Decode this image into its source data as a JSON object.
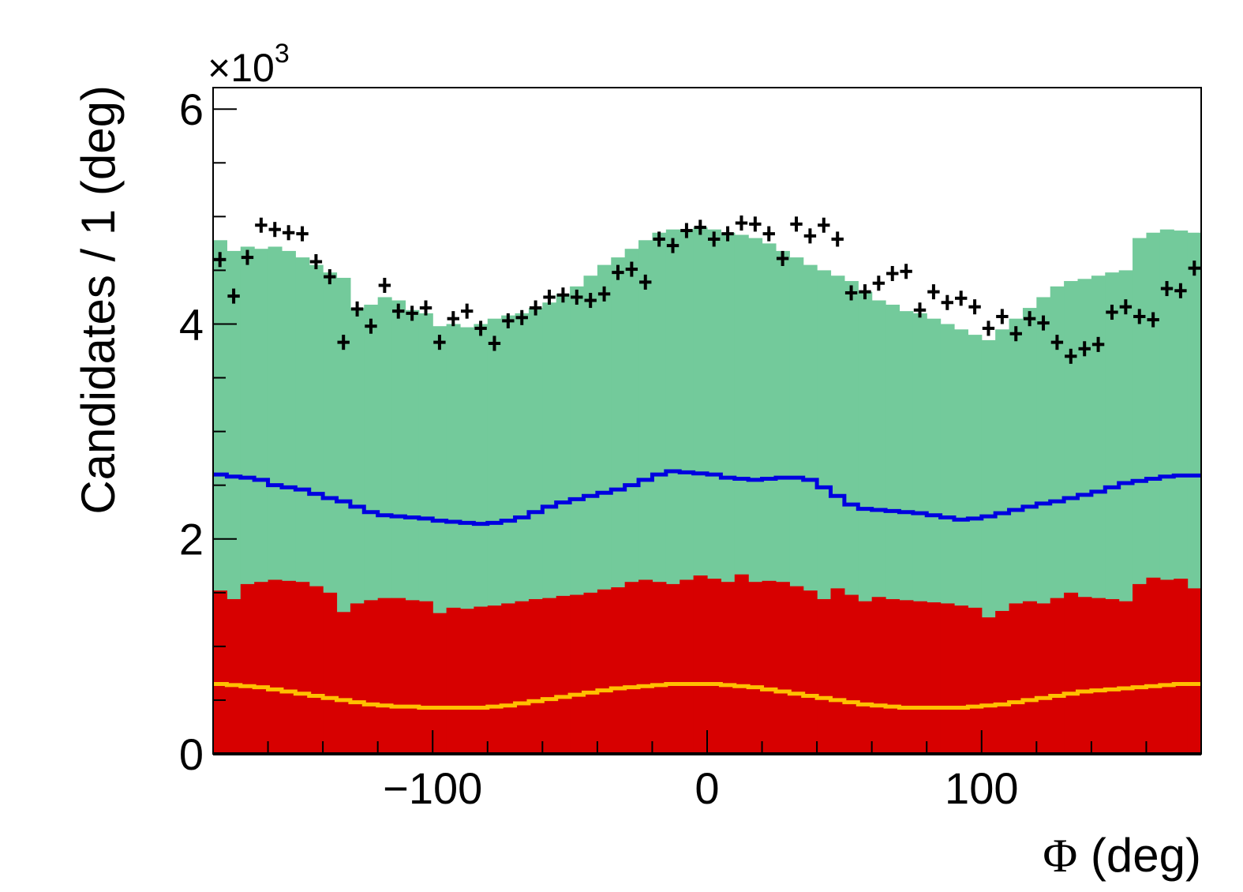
{
  "chart_data": {
    "type": "histogram",
    "title": "",
    "xlabel": "Φ (deg)",
    "ylabel": "Candidates / 1 (deg)",
    "y_multiplier": "×10",
    "y_multiplier_exp": "3",
    "xlim": [
      -180,
      180
    ],
    "ylim": [
      0,
      6.2
    ],
    "x_ticks": [
      -100,
      0,
      100
    ],
    "x_tick_labels": [
      "−100",
      "0",
      "100"
    ],
    "y_ticks": [
      0,
      2,
      4,
      6
    ],
    "y_tick_labels": [
      "0",
      "2",
      "4",
      "6"
    ],
    "grid": false,
    "legend": "none",
    "bin_width": 5,
    "bin_centers": [
      -177.5,
      -172.5,
      -167.5,
      -162.5,
      -157.5,
      -152.5,
      -147.5,
      -142.5,
      -137.5,
      -132.5,
      -127.5,
      -122.5,
      -117.5,
      -112.5,
      -107.5,
      -102.5,
      -97.5,
      -92.5,
      -87.5,
      -82.5,
      -77.5,
      -72.5,
      -67.5,
      -62.5,
      -57.5,
      -52.5,
      -47.5,
      -42.5,
      -37.5,
      -32.5,
      -27.5,
      -22.5,
      -17.5,
      -12.5,
      -7.5,
      -2.5,
      2.5,
      7.5,
      12.5,
      17.5,
      22.5,
      27.5,
      32.5,
      37.5,
      42.5,
      47.5,
      52.5,
      57.5,
      62.5,
      67.5,
      72.5,
      77.5,
      82.5,
      87.5,
      92.5,
      97.5,
      102.5,
      107.5,
      112.5,
      117.5,
      122.5,
      127.5,
      132.5,
      137.5,
      142.5,
      147.5,
      152.5,
      157.5,
      162.5,
      167.5,
      172.5,
      177.5
    ],
    "series": [
      {
        "name": "",
        "style": "filled-step",
        "color": "#73ca9b",
        "values": [
          4.78,
          4.68,
          4.72,
          4.7,
          4.72,
          4.68,
          4.62,
          4.55,
          4.48,
          4.43,
          4.15,
          4.18,
          4.25,
          4.22,
          4.13,
          4.1,
          3.98,
          4.0,
          3.97,
          4.0,
          4.05,
          4.08,
          4.1,
          4.15,
          4.2,
          4.28,
          4.35,
          4.45,
          4.55,
          4.62,
          4.7,
          4.78,
          4.85,
          4.88,
          4.88,
          4.9,
          4.88,
          4.85,
          4.83,
          4.8,
          4.75,
          4.68,
          4.62,
          4.55,
          4.5,
          4.45,
          4.4,
          4.3,
          4.22,
          4.18,
          4.12,
          4.1,
          4.05,
          4.0,
          3.95,
          3.9,
          3.85,
          3.95,
          4.05,
          4.15,
          4.25,
          4.35,
          4.4,
          4.42,
          4.45,
          4.48,
          4.5,
          4.8,
          4.85,
          4.88,
          4.87,
          4.85
        ]
      },
      {
        "name": "",
        "style": "filled-step",
        "color": "#d70000",
        "values": [
          1.52,
          1.44,
          1.58,
          1.6,
          1.62,
          1.61,
          1.6,
          1.56,
          1.5,
          1.32,
          1.4,
          1.43,
          1.45,
          1.45,
          1.43,
          1.42,
          1.31,
          1.36,
          1.35,
          1.37,
          1.38,
          1.4,
          1.42,
          1.44,
          1.45,
          1.47,
          1.48,
          1.5,
          1.53,
          1.55,
          1.6,
          1.62,
          1.6,
          1.58,
          1.62,
          1.66,
          1.63,
          1.6,
          1.67,
          1.6,
          1.61,
          1.6,
          1.56,
          1.52,
          1.44,
          1.54,
          1.48,
          1.42,
          1.46,
          1.44,
          1.43,
          1.42,
          1.41,
          1.4,
          1.38,
          1.36,
          1.27,
          1.33,
          1.4,
          1.42,
          1.4,
          1.45,
          1.5,
          1.46,
          1.45,
          1.44,
          1.42,
          1.58,
          1.64,
          1.62,
          1.63,
          1.54
        ]
      },
      {
        "name": "",
        "style": "step-line",
        "color": "#0000e0",
        "values": [
          2.6,
          2.58,
          2.57,
          2.55,
          2.5,
          2.48,
          2.46,
          2.42,
          2.38,
          2.35,
          2.3,
          2.25,
          2.22,
          2.21,
          2.2,
          2.19,
          2.17,
          2.16,
          2.15,
          2.14,
          2.15,
          2.17,
          2.2,
          2.25,
          2.3,
          2.34,
          2.37,
          2.4,
          2.43,
          2.46,
          2.5,
          2.55,
          2.6,
          2.63,
          2.62,
          2.61,
          2.6,
          2.57,
          2.56,
          2.55,
          2.56,
          2.57,
          2.57,
          2.55,
          2.48,
          2.4,
          2.32,
          2.28,
          2.27,
          2.26,
          2.25,
          2.24,
          2.22,
          2.2,
          2.18,
          2.19,
          2.21,
          2.24,
          2.27,
          2.3,
          2.33,
          2.35,
          2.38,
          2.41,
          2.44,
          2.48,
          2.52,
          2.54,
          2.56,
          2.58,
          2.59,
          2.59
        ]
      },
      {
        "name": "",
        "style": "step-line",
        "color": "#ffc000",
        "values": [
          0.65,
          0.64,
          0.63,
          0.62,
          0.6,
          0.58,
          0.56,
          0.54,
          0.52,
          0.5,
          0.48,
          0.46,
          0.45,
          0.44,
          0.44,
          0.43,
          0.43,
          0.43,
          0.43,
          0.43,
          0.44,
          0.45,
          0.47,
          0.49,
          0.51,
          0.53,
          0.55,
          0.57,
          0.59,
          0.61,
          0.62,
          0.63,
          0.64,
          0.65,
          0.65,
          0.65,
          0.65,
          0.64,
          0.63,
          0.62,
          0.6,
          0.58,
          0.56,
          0.54,
          0.52,
          0.5,
          0.48,
          0.46,
          0.45,
          0.44,
          0.43,
          0.43,
          0.43,
          0.43,
          0.43,
          0.44,
          0.45,
          0.46,
          0.48,
          0.5,
          0.52,
          0.54,
          0.56,
          0.58,
          0.59,
          0.6,
          0.61,
          0.62,
          0.63,
          0.64,
          0.65,
          0.65
        ]
      },
      {
        "name": "",
        "style": "points-with-errors",
        "color": "#000000",
        "y_error": 0.07,
        "values": [
          4.6,
          4.26,
          4.62,
          4.92,
          4.88,
          4.85,
          4.84,
          4.58,
          4.44,
          3.83,
          4.14,
          3.98,
          4.36,
          4.12,
          4.1,
          4.15,
          3.83,
          4.05,
          4.12,
          3.96,
          3.82,
          4.03,
          4.06,
          4.15,
          4.25,
          4.27,
          4.25,
          4.22,
          4.28,
          4.48,
          4.51,
          4.39,
          4.79,
          4.73,
          4.87,
          4.9,
          4.79,
          4.84,
          4.94,
          4.93,
          4.84,
          4.61,
          4.93,
          4.82,
          4.92,
          4.79,
          4.29,
          4.3,
          4.38,
          4.47,
          4.49,
          4.13,
          4.3,
          4.2,
          4.24,
          4.16,
          3.96,
          4.07,
          3.91,
          4.05,
          4.01,
          3.83,
          3.7,
          3.77,
          3.81,
          4.11,
          4.16,
          4.07,
          4.04,
          4.33,
          4.31,
          4.52
        ]
      }
    ]
  }
}
